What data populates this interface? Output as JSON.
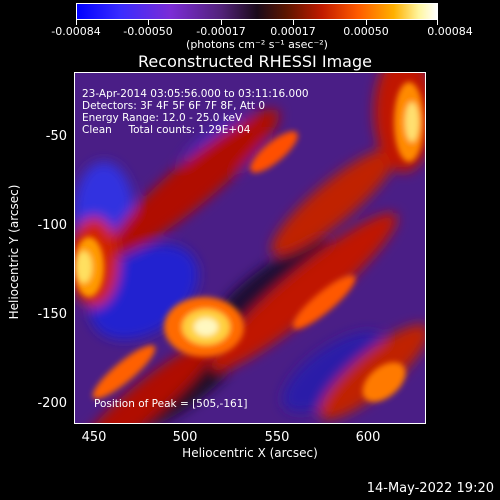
{
  "colorbar": {
    "tick_labels": [
      "-0.00084",
      "-0.00050",
      "-0.00017",
      "0.00017",
      "0.00050",
      "0.00084"
    ],
    "units": "(photons cm⁻² s⁻¹ asec⁻²)"
  },
  "title": "Reconstructed RHESSI Image",
  "info": {
    "time_range": "23-Apr-2014 03:05:56.000 to 03:11:16.000",
    "detectors": "Detectors: 3F 4F 5F 6F 7F 8F, Att 0",
    "energy": "Energy Range: 12.0 - 25.0 keV",
    "method": "Clean     Total counts: 1.29E+04",
    "peak": "Position of Peak = [505,-161]"
  },
  "axes": {
    "xlabel": "Heliocentric X (arcsec)",
    "ylabel": "Heliocentric Y (arcsec)",
    "xticks": [
      "450",
      "500",
      "550",
      "600"
    ],
    "yticks": [
      "-50",
      "-100",
      "-150",
      "-200"
    ]
  },
  "footer": {
    "date": "14-May-2022 19:20"
  }
}
